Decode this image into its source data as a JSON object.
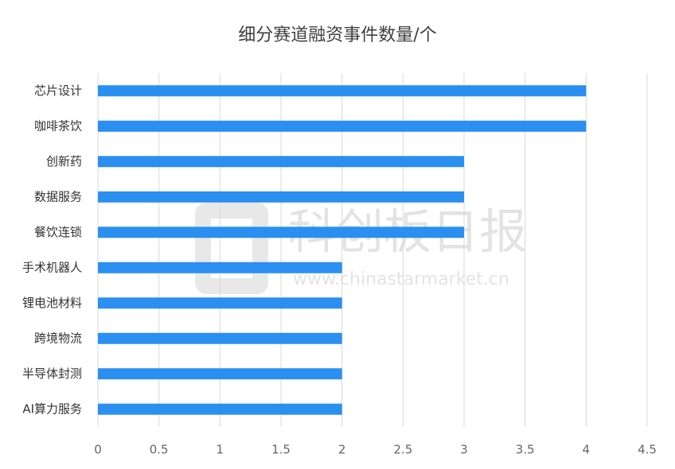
{
  "chart_data": {
    "type": "bar",
    "orientation": "horizontal",
    "title": "细分赛道融资事件数量/个",
    "categories": [
      "芯片设计",
      "咖啡茶饮",
      "创新药",
      "数据服务",
      "餐饮连锁",
      "手术机器人",
      "锂电池材料",
      "跨境物流",
      "半导体封测",
      "AI算力服务"
    ],
    "values": [
      4,
      4,
      3,
      3,
      3,
      2,
      2,
      2,
      2,
      2
    ],
    "color": "#2a8ff0",
    "xlim": [
      0,
      4.5
    ],
    "xticks": [
      0,
      0.5,
      1,
      1.5,
      2,
      2.5,
      3,
      3.5,
      4,
      4.5
    ],
    "grid": true,
    "watermark": {
      "name": "科创板日报",
      "url": "www.chinastarmarket.cn"
    }
  }
}
